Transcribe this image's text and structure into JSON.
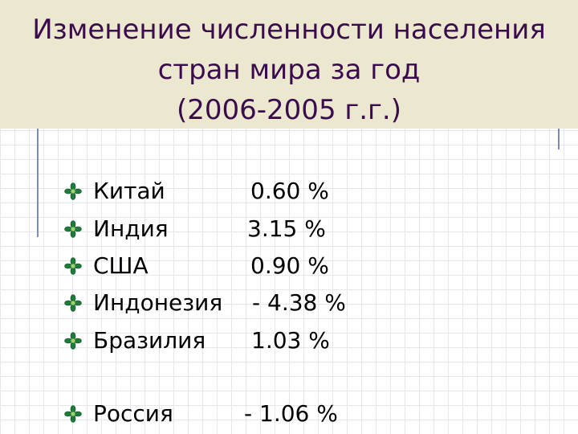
{
  "title": {
    "line1": "Изменение численности населения",
    "line2": "стран мира за год",
    "line3": "(2006-2005 г.г.)"
  },
  "items": [
    {
      "country": "Китай",
      "value": "0.60 %"
    },
    {
      "country": "Индия",
      "value": "3.15 %"
    },
    {
      "country": "США",
      "value": "0.90 %"
    },
    {
      "country": "Индонезия",
      "value": "- 4.38 %"
    },
    {
      "country": "Бразилия",
      "value": "1.03 %"
    },
    {
      "country": "Россия",
      "value": "- 1.06 %"
    }
  ],
  "colors": {
    "title_text": "#3a0c4d",
    "title_band": "#ece7cf",
    "bullet": "#1f7a3c",
    "grid": "#e6e6ef"
  },
  "bullet_icon": "diamond-flower-icon"
}
